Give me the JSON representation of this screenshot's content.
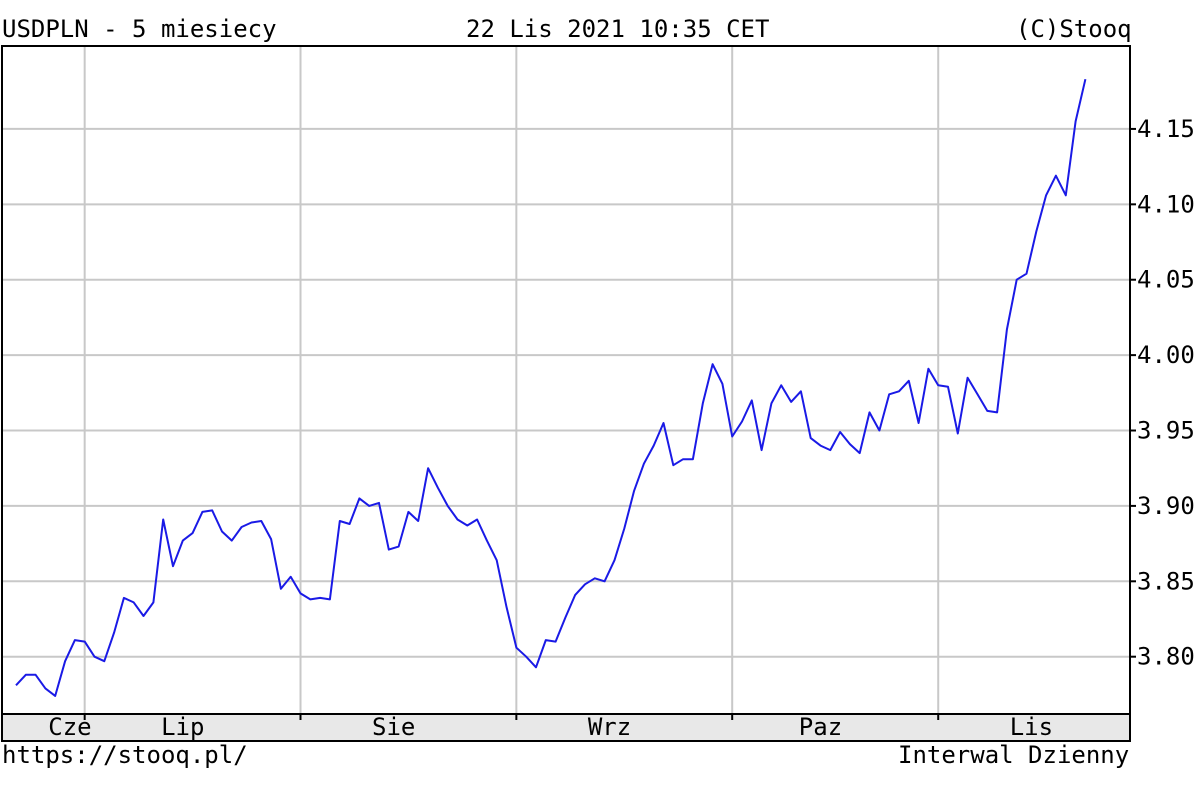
{
  "header": {
    "title": "USDPLN - 5 miesiecy",
    "timestamp": "22 Lis 2021 10:35 CET",
    "copyright": "(C)Stooq"
  },
  "footer": {
    "url": "https://stooq.pl/",
    "interval": "Interwal Dzienny"
  },
  "chart_data": {
    "type": "line",
    "title": "USDPLN - 5 miesiecy",
    "colors": {
      "line": "#1a1ae6",
      "grid": "#c8c8c8",
      "frame": "#000000"
    },
    "grid": true,
    "y_axis_side": "right",
    "ylim": [
      3.762,
      4.205
    ],
    "y_ticks": [
      3.8,
      3.85,
      3.9,
      3.95,
      4.0,
      4.05,
      4.1,
      4.15
    ],
    "y_tick_labels": [
      "3.80",
      "3.85",
      "3.90",
      "3.95",
      "4.00",
      "4.05",
      "4.10",
      "4.15"
    ],
    "x_month_labels": [
      "Cze",
      "Lip",
      "Sie",
      "Wrz",
      "Paz",
      "Lis"
    ],
    "x_month_label_index": [
      5.5,
      17,
      38.5,
      60.5,
      82,
      103.5
    ],
    "x_month_boundary_index": [
      7,
      29,
      51,
      73,
      94
    ],
    "x_domain": [
      0,
      111
    ],
    "series": [
      {
        "values": [
          3.781,
          3.788,
          3.788,
          3.779,
          3.774,
          3.797,
          3.811,
          3.81,
          3.8,
          3.797,
          3.816,
          3.839,
          3.836,
          3.827,
          3.836,
          3.891,
          3.86,
          3.877,
          3.882,
          3.896,
          3.897,
          3.883,
          3.877,
          3.886,
          3.889,
          3.89,
          3.878,
          3.845,
          3.853,
          3.842,
          3.838,
          3.839,
          3.838,
          3.89,
          3.888,
          3.905,
          3.9,
          3.902,
          3.871,
          3.873,
          3.896,
          3.89,
          3.925,
          3.912,
          3.9,
          3.891,
          3.887,
          3.891,
          3.877,
          3.864,
          3.833,
          3.806,
          3.8,
          3.793,
          3.811,
          3.81,
          3.826,
          3.841,
          3.848,
          3.852,
          3.85,
          3.864,
          3.885,
          3.91,
          3.928,
          3.94,
          3.955,
          3.927,
          3.931,
          3.931,
          3.968,
          3.994,
          3.981,
          3.946,
          3.956,
          3.97,
          3.937,
          3.968,
          3.98,
          3.969,
          3.976,
          3.945,
          3.94,
          3.937,
          3.949,
          3.941,
          3.935,
          3.962,
          3.95,
          3.974,
          3.976,
          3.983,
          3.955,
          3.991,
          3.98,
          3.979,
          3.948,
          3.985,
          3.974,
          3.963,
          3.962,
          4.017,
          4.05,
          4.054,
          4.082,
          4.106,
          4.119,
          4.106,
          4.155,
          4.183
        ]
      }
    ]
  }
}
